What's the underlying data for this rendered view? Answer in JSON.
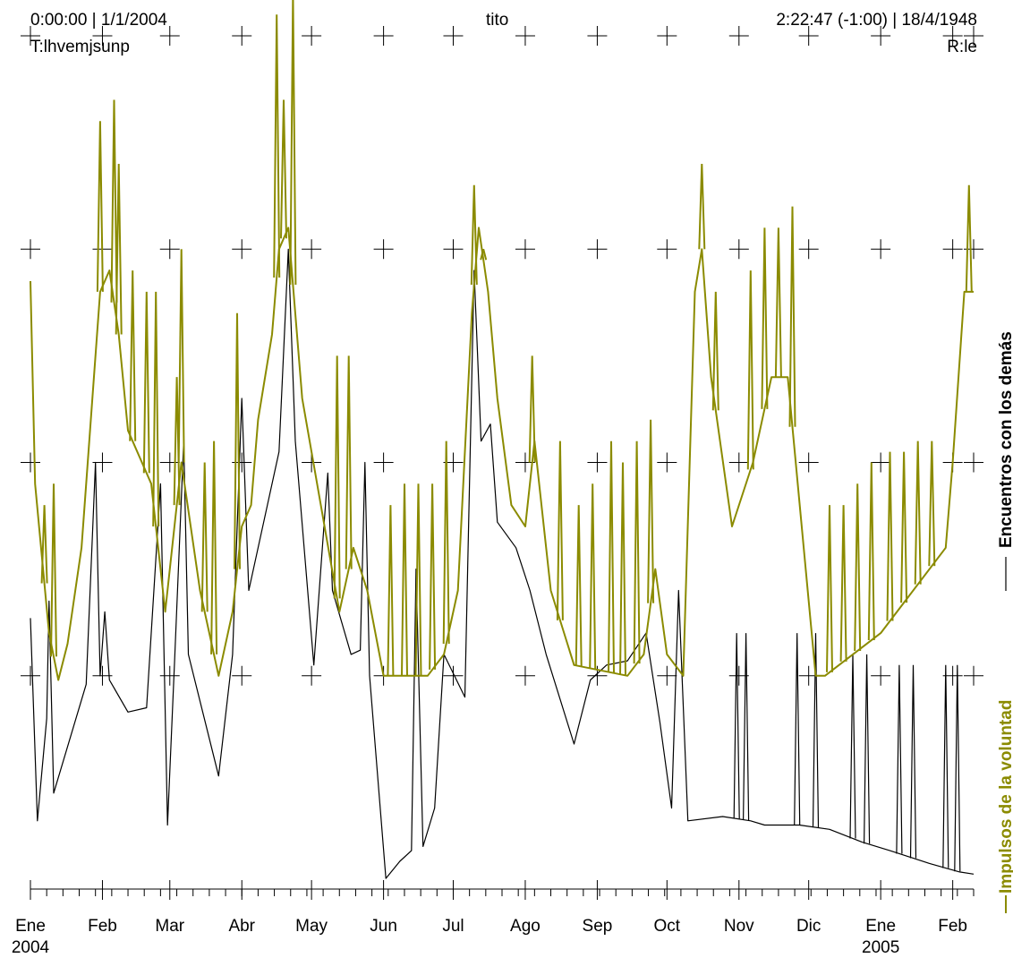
{
  "header": {
    "left_line1": "0:00:00 | 1/1/2004",
    "left_line2": "T:lhvemjsunp",
    "center": "tito",
    "right_line1": "2:22:47 (-1:00) | 18/4/1948",
    "right_line2": "R:le"
  },
  "colors": {
    "background": "#ffffff",
    "axis": "#000000",
    "series_black": "#000000",
    "series_olive": "#8b8b00"
  },
  "chart_data": {
    "type": "line",
    "x_axis": {
      "ticks": [
        "Ene",
        "Feb",
        "Mar",
        "Abr",
        "May",
        "Jun",
        "Jul",
        "Ago",
        "Sep",
        "Oct",
        "Nov",
        "Dic",
        "Ene",
        "Feb"
      ],
      "year_labels": [
        {
          "index": 0,
          "text": "2004"
        },
        {
          "index": 12,
          "text": "2005"
        }
      ],
      "range": [
        "2004-01-01",
        "2005-02-10"
      ]
    },
    "y_axis": {
      "range": [
        0,
        4
      ],
      "grid_levels": [
        1,
        2,
        3,
        4
      ],
      "tick_labels": false
    },
    "grid": "crosses",
    "legend_placement": "right-vertical",
    "series": [
      {
        "name": "Encuentros con los demás",
        "color": "#000000",
        "points": [
          [
            "2004-01-01",
            1.27
          ],
          [
            "2004-01-04",
            0.32
          ],
          [
            "2004-01-08",
            0.8
          ],
          [
            "2004-01-09",
            1.35
          ],
          [
            "2004-01-11",
            0.45
          ],
          [
            "2004-01-25",
            0.96
          ],
          [
            "2004-01-29",
            2.0
          ],
          [
            "2004-01-31",
            1.0
          ],
          [
            "2004-02-02",
            1.3
          ],
          [
            "2004-02-04",
            0.98
          ],
          [
            "2004-02-12",
            0.83
          ],
          [
            "2004-02-20",
            0.85
          ],
          [
            "2004-02-26",
            1.9
          ],
          [
            "2004-02-29",
            0.3
          ],
          [
            "2004-03-03",
            1.06
          ],
          [
            "2004-03-07",
            2.1
          ],
          [
            "2004-03-09",
            1.1
          ],
          [
            "2004-03-22",
            0.53
          ],
          [
            "2004-03-28",
            1.1
          ],
          [
            "2004-04-01",
            2.3
          ],
          [
            "2004-04-04",
            1.4
          ],
          [
            "2004-04-17",
            2.05
          ],
          [
            "2004-04-21",
            3.0
          ],
          [
            "2004-04-24",
            2.1
          ],
          [
            "2004-05-02",
            1.05
          ],
          [
            "2004-05-08",
            1.95
          ],
          [
            "2004-05-10",
            1.4
          ],
          [
            "2004-05-18",
            1.1
          ],
          [
            "2004-05-22",
            1.12
          ],
          [
            "2004-05-24",
            2.0
          ],
          [
            "2004-05-26",
            1.0
          ],
          [
            "2004-06-02",
            0.05
          ],
          [
            "2004-06-08",
            0.13
          ],
          [
            "2004-06-13",
            0.18
          ],
          [
            "2004-06-15",
            1.5
          ],
          [
            "2004-06-18",
            0.2
          ],
          [
            "2004-06-23",
            0.38
          ],
          [
            "2004-06-27",
            1.1
          ],
          [
            "2004-07-06",
            0.9
          ],
          [
            "2004-07-10",
            2.9
          ],
          [
            "2004-07-13",
            2.1
          ],
          [
            "2004-07-17",
            2.18
          ],
          [
            "2004-07-20",
            1.72
          ],
          [
            "2004-07-28",
            1.6
          ],
          [
            "2004-08-03",
            1.4
          ],
          [
            "2004-08-10",
            1.1
          ],
          [
            "2004-08-22",
            0.68
          ],
          [
            "2004-08-29",
            0.98
          ],
          [
            "2004-09-05",
            1.05
          ],
          [
            "2004-09-14",
            1.07
          ],
          [
            "2004-09-22",
            1.2
          ],
          [
            "2004-09-28",
            0.78
          ],
          [
            "2004-10-03",
            0.38
          ],
          [
            "2004-10-06",
            1.4
          ],
          [
            "2004-10-10",
            0.32
          ],
          [
            "2004-10-25",
            0.34
          ],
          [
            "2004-11-06",
            0.32
          ],
          [
            "2004-11-12",
            0.3
          ],
          [
            "2004-11-21",
            0.3
          ],
          [
            "2004-11-27",
            0.3
          ],
          [
            "2004-12-10",
            0.28
          ],
          [
            "2004-12-24",
            0.22
          ],
          [
            "2005-01-05",
            0.18
          ],
          [
            "2005-01-22",
            0.12
          ],
          [
            "2005-02-04",
            0.08
          ],
          [
            "2005-02-10",
            0.07
          ]
        ],
        "spikes": [
          [
            "2004-10-31",
            1.2
          ],
          [
            "2004-11-04",
            1.2
          ],
          [
            "2004-11-26",
            1.2
          ],
          [
            "2004-12-04",
            1.2
          ],
          [
            "2004-12-20",
            1.1
          ],
          [
            "2004-12-26",
            1.1
          ],
          [
            "2005-01-09",
            1.05
          ],
          [
            "2005-01-15",
            1.05
          ],
          [
            "2005-01-29",
            1.05
          ],
          [
            "2005-02-03",
            1.05
          ]
        ]
      },
      {
        "name": "Impulsos de la voluntad",
        "color": "#8b8b00",
        "points": [
          [
            "2004-01-01",
            2.85
          ],
          [
            "2004-01-03",
            1.9
          ],
          [
            "2004-01-09",
            1.2
          ],
          [
            "2004-01-13",
            0.98
          ],
          [
            "2004-01-17",
            1.15
          ],
          [
            "2004-01-23",
            1.6
          ],
          [
            "2004-01-27",
            2.2
          ],
          [
            "2004-01-31",
            2.8
          ],
          [
            "2004-02-04",
            2.9
          ],
          [
            "2004-02-08",
            2.6
          ],
          [
            "2004-02-12",
            2.15
          ],
          [
            "2004-02-18",
            2.0
          ],
          [
            "2004-02-22",
            1.9
          ],
          [
            "2004-02-28",
            1.3
          ],
          [
            "2004-03-06",
            2.0
          ],
          [
            "2004-03-14",
            1.4
          ],
          [
            "2004-03-22",
            1.0
          ],
          [
            "2004-03-28",
            1.3
          ],
          [
            "2004-04-01",
            1.7
          ],
          [
            "2004-04-05",
            1.8
          ],
          [
            "2004-04-08",
            2.2
          ],
          [
            "2004-04-14",
            2.6
          ],
          [
            "2004-04-17",
            3.0
          ],
          [
            "2004-04-21",
            3.1
          ],
          [
            "2004-04-27",
            2.3
          ],
          [
            "2004-05-05",
            1.8
          ],
          [
            "2004-05-13",
            1.3
          ],
          [
            "2004-05-19",
            1.6
          ],
          [
            "2004-05-25",
            1.4
          ],
          [
            "2004-06-01",
            1.0
          ],
          [
            "2004-06-20",
            1.0
          ],
          [
            "2004-06-27",
            1.1
          ],
          [
            "2004-07-03",
            1.4
          ],
          [
            "2004-07-09",
            2.7
          ],
          [
            "2004-07-12",
            3.1
          ],
          [
            "2004-07-16",
            2.8
          ],
          [
            "2004-07-20",
            2.3
          ],
          [
            "2004-07-26",
            1.8
          ],
          [
            "2004-08-01",
            1.7
          ],
          [
            "2004-08-05",
            2.1
          ],
          [
            "2004-08-12",
            1.4
          ],
          [
            "2004-08-22",
            1.05
          ],
          [
            "2004-09-14",
            1.0
          ],
          [
            "2004-09-21",
            1.1
          ],
          [
            "2004-09-26",
            1.5
          ],
          [
            "2004-10-01",
            1.1
          ],
          [
            "2004-10-08",
            1.0
          ],
          [
            "2004-10-13",
            2.8
          ],
          [
            "2004-10-16",
            3.0
          ],
          [
            "2004-10-20",
            2.4
          ],
          [
            "2004-10-29",
            1.7
          ],
          [
            "2004-11-07",
            2.0
          ],
          [
            "2004-11-15",
            2.4
          ],
          [
            "2004-11-22",
            2.4
          ],
          [
            "2004-11-28",
            1.7
          ],
          [
            "2004-12-04",
            1.0
          ],
          [
            "2004-12-08",
            1.0
          ],
          [
            "2005-01-01",
            1.2
          ],
          [
            "2005-01-29",
            1.6
          ],
          [
            "2005-02-01",
            2.0
          ],
          [
            "2005-02-06",
            2.8
          ],
          [
            "2005-02-10",
            2.8
          ]
        ],
        "spikes": [
          [
            "2004-01-07",
            1.8
          ],
          [
            "2004-01-11",
            1.9
          ],
          [
            "2004-01-31",
            3.6
          ],
          [
            "2004-02-06",
            3.7
          ],
          [
            "2004-02-08",
            3.4
          ],
          [
            "2004-02-14",
            2.9
          ],
          [
            "2004-02-20",
            2.8
          ],
          [
            "2004-02-24",
            2.8
          ],
          [
            "2004-03-04",
            2.4
          ],
          [
            "2004-03-06",
            3.0
          ],
          [
            "2004-03-16",
            2.0
          ],
          [
            "2004-03-20",
            2.1
          ],
          [
            "2004-03-30",
            2.7
          ],
          [
            "2004-04-16",
            4.1
          ],
          [
            "2004-04-19",
            3.7
          ],
          [
            "2004-04-23",
            4.2
          ],
          [
            "2004-05-12",
            2.5
          ],
          [
            "2004-05-17",
            2.5
          ],
          [
            "2004-06-04",
            1.8
          ],
          [
            "2004-06-10",
            1.9
          ],
          [
            "2004-06-16",
            1.9
          ],
          [
            "2004-06-22",
            1.9
          ],
          [
            "2004-06-28",
            2.1
          ],
          [
            "2004-07-10",
            3.3
          ],
          [
            "2004-07-14",
            3.0
          ],
          [
            "2004-08-04",
            2.5
          ],
          [
            "2004-08-16",
            2.1
          ],
          [
            "2004-08-24",
            1.8
          ],
          [
            "2004-08-30",
            1.9
          ],
          [
            "2004-09-07",
            2.1
          ],
          [
            "2004-09-12",
            2.0
          ],
          [
            "2004-09-18",
            2.1
          ],
          [
            "2004-09-24",
            2.2
          ],
          [
            "2004-10-16",
            3.4
          ],
          [
            "2004-10-22",
            2.8
          ],
          [
            "2004-11-06",
            2.9
          ],
          [
            "2004-11-12",
            3.1
          ],
          [
            "2004-11-18",
            3.1
          ],
          [
            "2004-11-24",
            3.2
          ],
          [
            "2004-12-10",
            1.8
          ],
          [
            "2004-12-16",
            1.8
          ],
          [
            "2004-12-22",
            1.9
          ],
          [
            "2004-12-28",
            2.0
          ],
          [
            "2005-01-05",
            2.05
          ],
          [
            "2005-01-11",
            2.05
          ],
          [
            "2005-01-17",
            2.1
          ],
          [
            "2005-01-23",
            2.1
          ],
          [
            "2005-02-08",
            3.3
          ]
        ]
      }
    ]
  }
}
